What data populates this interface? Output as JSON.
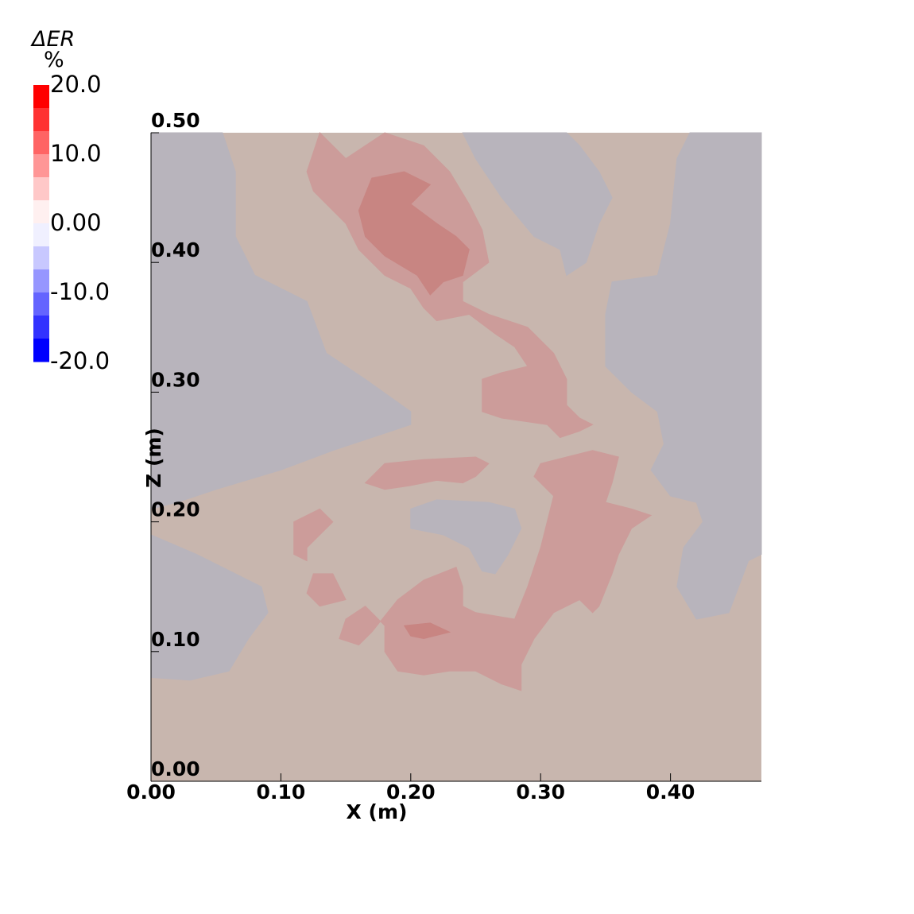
{
  "chart_data": {
    "type": "heatmap",
    "title": "",
    "xlabel": "X (m)",
    "ylabel": "Z (m)",
    "xlim": [
      0.0,
      0.47
    ],
    "ylim": [
      0.0,
      0.5
    ],
    "x_ticks": [
      {
        "value": 0.0,
        "label": "0.00"
      },
      {
        "value": 0.1,
        "label": "0.10"
      },
      {
        "value": 0.2,
        "label": "0.20"
      },
      {
        "value": 0.3,
        "label": "0.30"
      },
      {
        "value": 0.4,
        "label": "0.40"
      }
    ],
    "y_ticks": [
      {
        "value": 0.0,
        "label": "0.00"
      },
      {
        "value": 0.1,
        "label": "0.10"
      },
      {
        "value": 0.2,
        "label": "0.20"
      },
      {
        "value": 0.3,
        "label": "0.30"
      },
      {
        "value": 0.4,
        "label": "0.40"
      },
      {
        "value": 0.5,
        "label": "0.50"
      }
    ],
    "colorbar": {
      "title_symbol": "Δ",
      "title_var": "ER",
      "unit": "%",
      "range": [
        -20.0,
        20.0
      ],
      "ticks": [
        {
          "value": 20.0,
          "label": "20.0"
        },
        {
          "value": 10.0,
          "label": "10.0"
        },
        {
          "value": 0.0,
          "label": "0.00"
        },
        {
          "value": -10.0,
          "label": "-10.0"
        },
        {
          "value": -20.0,
          "label": "-20.0"
        }
      ],
      "colors_top_to_bottom": [
        "#ff0000",
        "#ff3232",
        "#ff6464",
        "#ff9696",
        "#ffc8c8",
        "#fff0f0",
        "#f0f0ff",
        "#c8c8ff",
        "#9696ff",
        "#6464ff",
        "#3232ff",
        "#0000ff"
      ]
    },
    "background_value_color": "#c8b6ae",
    "regions": [
      {
        "level": "low (slightly negative)",
        "color": "#b8b4bc",
        "points": [
          [
            0.0,
            0.5
          ],
          [
            0.055,
            0.5
          ],
          [
            0.065,
            0.47
          ],
          [
            0.065,
            0.42
          ],
          [
            0.08,
            0.39
          ],
          [
            0.12,
            0.37
          ],
          [
            0.135,
            0.33
          ],
          [
            0.165,
            0.31
          ],
          [
            0.2,
            0.285
          ],
          [
            0.2,
            0.275
          ],
          [
            0.17,
            0.265
          ],
          [
            0.14,
            0.255
          ],
          [
            0.1,
            0.24
          ],
          [
            0.05,
            0.225
          ],
          [
            0.02,
            0.215
          ],
          [
            0.0,
            0.21
          ]
        ]
      },
      {
        "level": "low (slightly negative)",
        "color": "#b8b4bc",
        "points": [
          [
            0.0,
            0.19
          ],
          [
            0.035,
            0.175
          ],
          [
            0.065,
            0.16
          ],
          [
            0.085,
            0.15
          ],
          [
            0.09,
            0.13
          ],
          [
            0.075,
            0.11
          ],
          [
            0.06,
            0.085
          ],
          [
            0.03,
            0.078
          ],
          [
            0.0,
            0.08
          ]
        ]
      },
      {
        "level": "low (slightly negative)",
        "color": "#b8b4bc",
        "points": [
          [
            0.24,
            0.5
          ],
          [
            0.32,
            0.5
          ],
          [
            0.33,
            0.49
          ],
          [
            0.345,
            0.47
          ],
          [
            0.355,
            0.45
          ],
          [
            0.345,
            0.43
          ],
          [
            0.335,
            0.4
          ],
          [
            0.32,
            0.39
          ],
          [
            0.315,
            0.41
          ],
          [
            0.295,
            0.42
          ],
          [
            0.27,
            0.45
          ],
          [
            0.25,
            0.48
          ]
        ]
      },
      {
        "level": "low (slightly negative)",
        "color": "#b8b4bc",
        "points": [
          [
            0.47,
            0.5
          ],
          [
            0.415,
            0.5
          ],
          [
            0.405,
            0.48
          ],
          [
            0.4,
            0.43
          ],
          [
            0.39,
            0.39
          ],
          [
            0.355,
            0.385
          ],
          [
            0.35,
            0.36
          ],
          [
            0.35,
            0.32
          ],
          [
            0.37,
            0.3
          ],
          [
            0.39,
            0.285
          ],
          [
            0.395,
            0.26
          ],
          [
            0.385,
            0.24
          ],
          [
            0.4,
            0.22
          ],
          [
            0.42,
            0.215
          ],
          [
            0.425,
            0.2
          ],
          [
            0.41,
            0.18
          ],
          [
            0.405,
            0.15
          ],
          [
            0.42,
            0.125
          ],
          [
            0.445,
            0.13
          ],
          [
            0.46,
            0.17
          ],
          [
            0.47,
            0.175
          ]
        ]
      },
      {
        "level": "low (slightly negative)",
        "color": "#b8b4bc",
        "points": [
          [
            0.2,
            0.21
          ],
          [
            0.22,
            0.217
          ],
          [
            0.26,
            0.215
          ],
          [
            0.28,
            0.21
          ],
          [
            0.285,
            0.195
          ],
          [
            0.275,
            0.175
          ],
          [
            0.265,
            0.16
          ],
          [
            0.255,
            0.162
          ],
          [
            0.245,
            0.18
          ],
          [
            0.225,
            0.19
          ],
          [
            0.2,
            0.195
          ]
        ]
      },
      {
        "level": "high (positive)",
        "color": "#cc9c9a",
        "points": [
          [
            0.13,
            0.5
          ],
          [
            0.14,
            0.49
          ],
          [
            0.15,
            0.48
          ],
          [
            0.165,
            0.49
          ],
          [
            0.18,
            0.5
          ],
          [
            0.21,
            0.49
          ],
          [
            0.23,
            0.47
          ],
          [
            0.245,
            0.445
          ],
          [
            0.255,
            0.425
          ],
          [
            0.26,
            0.4
          ],
          [
            0.24,
            0.385
          ],
          [
            0.24,
            0.37
          ],
          [
            0.26,
            0.36
          ],
          [
            0.29,
            0.35
          ],
          [
            0.3,
            0.34
          ],
          [
            0.31,
            0.33
          ],
          [
            0.32,
            0.31
          ],
          [
            0.32,
            0.29
          ],
          [
            0.33,
            0.28
          ],
          [
            0.34,
            0.275
          ],
          [
            0.33,
            0.27
          ],
          [
            0.315,
            0.265
          ],
          [
            0.305,
            0.275
          ],
          [
            0.27,
            0.28
          ],
          [
            0.255,
            0.285
          ],
          [
            0.255,
            0.31
          ],
          [
            0.27,
            0.315
          ],
          [
            0.29,
            0.32
          ],
          [
            0.28,
            0.335
          ],
          [
            0.265,
            0.345
          ],
          [
            0.245,
            0.36
          ],
          [
            0.22,
            0.355
          ],
          [
            0.21,
            0.365
          ],
          [
            0.2,
            0.38
          ],
          [
            0.18,
            0.39
          ],
          [
            0.16,
            0.41
          ],
          [
            0.15,
            0.43
          ],
          [
            0.14,
            0.44
          ],
          [
            0.125,
            0.455
          ],
          [
            0.12,
            0.47
          ]
        ]
      },
      {
        "level": "high (positive)",
        "color": "#cc9c9a",
        "points": [
          [
            0.165,
            0.23
          ],
          [
            0.18,
            0.245
          ],
          [
            0.21,
            0.248
          ],
          [
            0.25,
            0.25
          ],
          [
            0.26,
            0.245
          ],
          [
            0.25,
            0.235
          ],
          [
            0.24,
            0.23
          ],
          [
            0.22,
            0.232
          ],
          [
            0.2,
            0.228
          ],
          [
            0.18,
            0.225
          ]
        ]
      },
      {
        "level": "high (positive)",
        "color": "#cc9c9a",
        "points": [
          [
            0.3,
            0.245
          ],
          [
            0.34,
            0.255
          ],
          [
            0.36,
            0.25
          ],
          [
            0.355,
            0.23
          ],
          [
            0.35,
            0.215
          ],
          [
            0.37,
            0.21
          ],
          [
            0.385,
            0.205
          ],
          [
            0.37,
            0.195
          ],
          [
            0.36,
            0.175
          ],
          [
            0.355,
            0.16
          ],
          [
            0.345,
            0.135
          ],
          [
            0.34,
            0.13
          ],
          [
            0.33,
            0.14
          ],
          [
            0.31,
            0.13
          ],
          [
            0.295,
            0.11
          ],
          [
            0.285,
            0.09
          ],
          [
            0.285,
            0.07
          ],
          [
            0.27,
            0.075
          ],
          [
            0.25,
            0.085
          ],
          [
            0.23,
            0.085
          ],
          [
            0.21,
            0.082
          ],
          [
            0.19,
            0.085
          ],
          [
            0.18,
            0.1
          ],
          [
            0.18,
            0.12
          ],
          [
            0.165,
            0.135
          ],
          [
            0.15,
            0.125
          ],
          [
            0.145,
            0.11
          ],
          [
            0.16,
            0.105
          ],
          [
            0.17,
            0.115
          ],
          [
            0.19,
            0.14
          ],
          [
            0.21,
            0.155
          ],
          [
            0.235,
            0.165
          ],
          [
            0.24,
            0.15
          ],
          [
            0.24,
            0.135
          ],
          [
            0.25,
            0.13
          ],
          [
            0.28,
            0.125
          ],
          [
            0.29,
            0.15
          ],
          [
            0.3,
            0.18
          ],
          [
            0.305,
            0.2
          ],
          [
            0.31,
            0.22
          ],
          [
            0.295,
            0.235
          ]
        ]
      },
      {
        "level": "high (positive)",
        "color": "#cc9c9a",
        "points": [
          [
            0.11,
            0.2
          ],
          [
            0.13,
            0.21
          ],
          [
            0.14,
            0.2
          ],
          [
            0.13,
            0.19
          ],
          [
            0.12,
            0.18
          ],
          [
            0.12,
            0.17
          ],
          [
            0.11,
            0.175
          ]
        ]
      },
      {
        "level": "high (positive)",
        "color": "#cc9c9a",
        "points": [
          [
            0.125,
            0.16
          ],
          [
            0.14,
            0.16
          ],
          [
            0.15,
            0.14
          ],
          [
            0.13,
            0.135
          ],
          [
            0.12,
            0.145
          ]
        ]
      },
      {
        "level": "higher (positive)",
        "color": "#c88582",
        "points": [
          [
            0.16,
            0.44
          ],
          [
            0.17,
            0.465
          ],
          [
            0.195,
            0.47
          ],
          [
            0.215,
            0.46
          ],
          [
            0.2,
            0.445
          ],
          [
            0.22,
            0.43
          ],
          [
            0.235,
            0.42
          ],
          [
            0.245,
            0.41
          ],
          [
            0.24,
            0.39
          ],
          [
            0.225,
            0.385
          ],
          [
            0.215,
            0.375
          ],
          [
            0.205,
            0.39
          ],
          [
            0.18,
            0.405
          ],
          [
            0.165,
            0.42
          ]
        ]
      },
      {
        "level": "higher (positive)",
        "color": "#c88582",
        "points": [
          [
            0.195,
            0.12
          ],
          [
            0.215,
            0.122
          ],
          [
            0.23,
            0.115
          ],
          [
            0.21,
            0.11
          ],
          [
            0.2,
            0.112
          ]
        ]
      }
    ]
  }
}
